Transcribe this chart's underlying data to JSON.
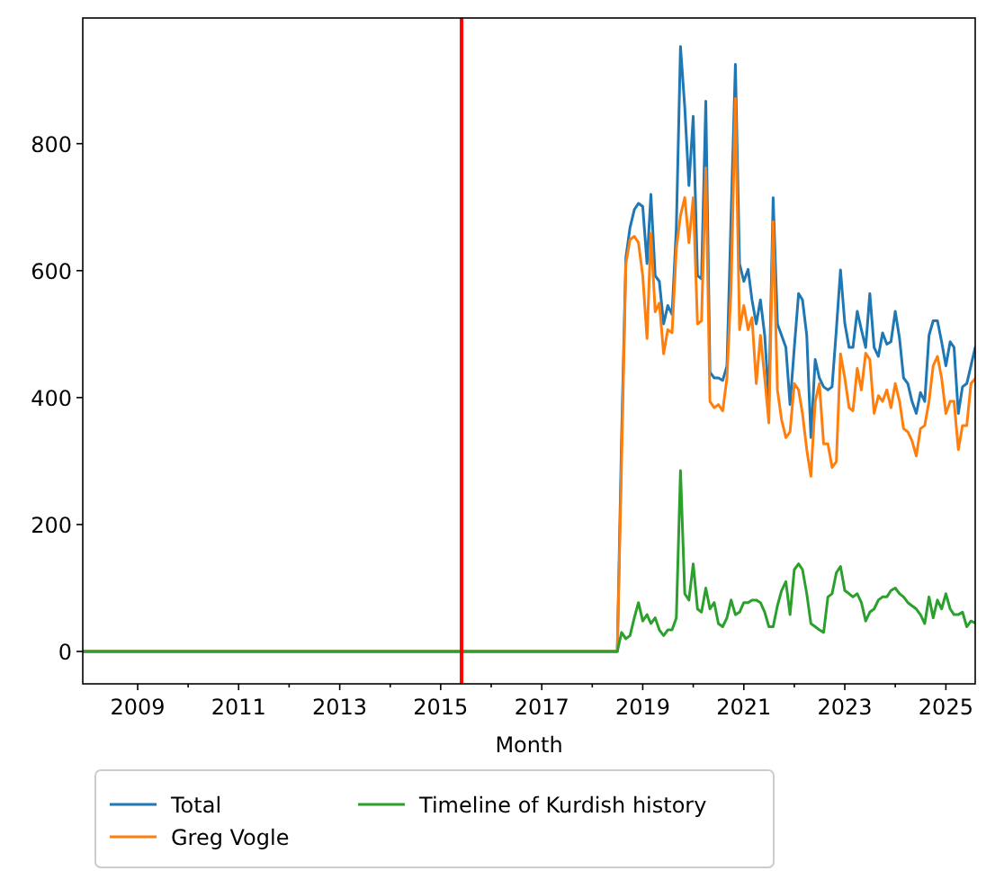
{
  "chart_data": {
    "type": "line",
    "xlabel": "Month",
    "x": [
      "2007-12",
      "2018-07",
      "2018-08",
      "2018-09",
      "2018-10",
      "2018-11",
      "2018-12",
      "2019-01",
      "2019-02",
      "2019-03",
      "2019-04",
      "2019-05",
      "2019-06",
      "2019-07",
      "2019-08",
      "2019-09",
      "2019-10",
      "2019-11",
      "2019-12",
      "2020-01",
      "2020-02",
      "2020-03",
      "2020-04",
      "2020-05",
      "2020-06",
      "2020-07",
      "2020-08",
      "2020-09",
      "2020-10",
      "2020-11",
      "2020-12",
      "2021-01",
      "2021-02",
      "2021-03",
      "2021-04",
      "2021-05",
      "2021-06",
      "2021-07",
      "2021-08",
      "2021-09",
      "2021-10",
      "2021-11",
      "2021-12",
      "2022-01",
      "2022-02",
      "2022-03",
      "2022-04",
      "2022-05",
      "2022-06",
      "2022-07",
      "2022-08",
      "2022-09",
      "2022-10",
      "2022-11",
      "2022-12",
      "2023-01",
      "2023-02",
      "2023-03",
      "2023-04",
      "2023-05",
      "2023-06",
      "2023-07",
      "2023-08",
      "2023-09",
      "2023-10",
      "2023-11",
      "2023-12",
      "2024-01",
      "2024-02",
      "2024-03",
      "2024-04",
      "2024-05",
      "2024-06",
      "2024-07",
      "2024-08",
      "2024-09",
      "2024-10",
      "2024-11",
      "2024-12",
      "2025-01",
      "2025-02",
      "2025-03",
      "2025-04",
      "2025-05",
      "2025-06",
      "2025-07",
      "2025-08"
    ],
    "series": [
      {
        "name": "Total",
        "color": "#1f77b4",
        "values": [
          0,
          0,
          337,
          620,
          668,
          696,
          706,
          701,
          611,
          720,
          592,
          583,
          516,
          545,
          531,
          668,
          953,
          857,
          734,
          843,
          592,
          587,
          867,
          440,
          431,
          431,
          427,
          450,
          687,
          925,
          611,
          583,
          602,
          554,
          516,
          554,
          498,
          394,
          715,
          516,
          498,
          479,
          389,
          479,
          564,
          554,
          498,
          337,
          460,
          431,
          417,
          412,
          417,
          507,
          601,
          517,
          479,
          479,
          536,
          507,
          479,
          564,
          479,
          465,
          502,
          484,
          488,
          536,
          493,
          431,
          422,
          394,
          375,
          408,
          394,
          498,
          521,
          521,
          488,
          450,
          488,
          479,
          375,
          417,
          422,
          450,
          479
        ]
      },
      {
        "name": "Greg Vogle",
        "color": "#ff7f0e",
        "values": [
          0,
          0,
          299,
          611,
          649,
          654,
          644,
          592,
          493,
          659,
          535,
          549,
          469,
          507,
          502,
          635,
          687,
          715,
          644,
          715,
          516,
          521,
          762,
          394,
          384,
          389,
          379,
          431,
          573,
          871,
          507,
          545,
          507,
          526,
          422,
          498,
          431,
          360,
          677,
          412,
          365,
          337,
          346,
          422,
          412,
          375,
          318,
          276,
          394,
          422,
          327,
          327,
          290,
          299,
          469,
          431,
          384,
          379,
          446,
          412,
          470,
          460,
          375,
          403,
          394,
          412,
          384,
          422,
          394,
          351,
          346,
          332,
          308,
          351,
          356,
          394,
          450,
          465,
          431,
          375,
          394,
          394,
          318,
          356,
          356,
          422,
          430
        ]
      },
      {
        "name": "Timeline of Kurdish history",
        "color": "#2ca02c",
        "values": [
          0,
          0,
          30,
          20,
          25,
          53,
          77,
          48,
          58,
          44,
          53,
          34,
          25,
          34,
          34,
          53,
          285,
          91,
          81,
          138,
          67,
          62,
          100,
          67,
          77,
          44,
          39,
          53,
          81,
          58,
          62,
          77,
          77,
          81,
          81,
          77,
          62,
          39,
          39,
          72,
          96,
          110,
          58,
          129,
          138,
          129,
          91,
          44,
          39,
          34,
          30,
          86,
          91,
          124,
          134,
          96,
          91,
          86,
          91,
          77,
          48,
          62,
          67,
          81,
          86,
          86,
          96,
          100,
          91,
          86,
          77,
          72,
          67,
          58,
          44,
          86,
          53,
          81,
          67,
          91,
          67,
          58,
          58,
          62,
          39,
          48,
          45
        ]
      }
    ],
    "xlim": [
      "2007-12",
      "2025-08"
    ],
    "xticks": [
      {
        "value": "2009-01",
        "label": "2009"
      },
      {
        "value": "2010-01",
        "label": null
      },
      {
        "value": "2011-01",
        "label": "2011"
      },
      {
        "value": "2012-01",
        "label": null
      },
      {
        "value": "2013-01",
        "label": "2013"
      },
      {
        "value": "2014-01",
        "label": null
      },
      {
        "value": "2015-01",
        "label": "2015"
      },
      {
        "value": "2016-01",
        "label": null
      },
      {
        "value": "2017-01",
        "label": "2017"
      },
      {
        "value": "2018-01",
        "label": null
      },
      {
        "value": "2019-01",
        "label": "2019"
      },
      {
        "value": "2020-01",
        "label": null
      },
      {
        "value": "2021-01",
        "label": "2021"
      },
      {
        "value": "2022-01",
        "label": null
      },
      {
        "value": "2023-01",
        "label": "2023"
      },
      {
        "value": "2024-01",
        "label": null
      },
      {
        "value": "2025-01",
        "label": "2025"
      }
    ],
    "ylim": [
      -51,
      998
    ],
    "yticks": [
      0,
      200,
      400,
      600,
      800
    ],
    "ref_lines": [
      {
        "axis": "x",
        "value": "2015-06",
        "label": null,
        "color": "#ff0000"
      }
    ],
    "grid": false,
    "legend": "bottom",
    "marker": "none",
    "line_style": "solid"
  }
}
